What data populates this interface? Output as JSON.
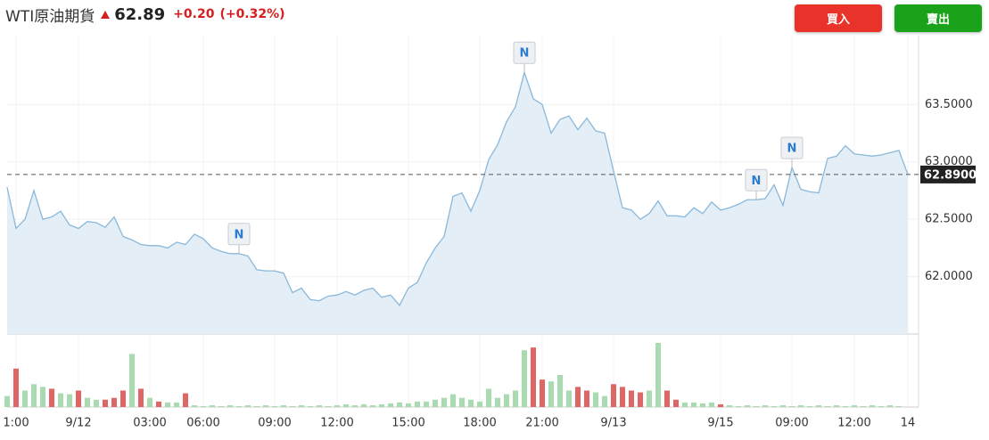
{
  "header": {
    "title": "WTI原油期貨",
    "price": "62.89",
    "change": "+0.20",
    "change_pct": "(+0.32%)",
    "buy": "買入",
    "sell": "賣出"
  },
  "chart_data": {
    "type": "line",
    "color": "#8ab8da",
    "fill": "#e4eef7",
    "categories": [
      null,
      "1:00",
      null,
      null,
      null,
      null,
      null,
      null,
      "9/12",
      null,
      null,
      null,
      null,
      null,
      null,
      null,
      "03:00",
      null,
      null,
      null,
      null,
      null,
      "06:00",
      null,
      null,
      null,
      null,
      null,
      null,
      null,
      "09:00",
      null,
      null,
      null,
      null,
      null,
      null,
      "12:00",
      null,
      null,
      null,
      null,
      null,
      null,
      null,
      "15:00",
      null,
      null,
      null,
      null,
      null,
      null,
      null,
      "18:00",
      null,
      null,
      null,
      null,
      null,
      null,
      "21:00",
      null,
      null,
      null,
      null,
      null,
      null,
      null,
      "9/13",
      null,
      null,
      null,
      null,
      null,
      null,
      null,
      null,
      null,
      null,
      null,
      "9/15",
      null,
      null,
      null,
      null,
      null,
      null,
      null,
      "09:00",
      null,
      null,
      null,
      null,
      null,
      null,
      "12:00",
      null,
      null,
      null,
      null,
      null,
      "14",
      null
    ],
    "values": [
      62.78,
      62.42,
      62.5,
      62.75,
      62.5,
      62.52,
      62.57,
      62.45,
      62.42,
      62.48,
      62.47,
      62.43,
      62.52,
      62.35,
      62.32,
      62.28,
      62.27,
      62.27,
      62.25,
      62.3,
      62.28,
      62.37,
      62.33,
      62.25,
      62.22,
      62.2,
      62.2,
      62.18,
      62.06,
      62.05,
      62.05,
      62.03,
      61.86,
      61.9,
      61.8,
      61.79,
      61.83,
      61.84,
      61.87,
      61.84,
      61.88,
      61.9,
      61.82,
      61.84,
      61.75,
      61.9,
      61.95,
      62.12,
      62.25,
      62.35,
      62.7,
      62.73,
      62.57,
      62.75,
      63.02,
      63.15,
      63.35,
      63.48,
      63.78,
      63.55,
      63.5,
      63.25,
      63.37,
      63.4,
      63.28,
      63.38,
      63.27,
      63.25,
      62.92,
      62.6,
      62.58,
      62.5,
      62.55,
      62.66,
      62.53,
      62.53,
      62.52,
      62.6,
      62.55,
      62.65,
      62.58,
      62.6,
      62.63,
      62.67,
      62.67,
      62.68,
      62.8,
      62.62,
      62.95,
      62.76,
      62.74,
      62.73,
      63.03,
      63.05,
      63.14,
      63.07,
      63.06,
      63.05,
      63.06,
      63.08,
      63.1,
      62.89,
      null
    ],
    "ylim": [
      61.5,
      64.1
    ],
    "yticks": [
      {
        "value": 62,
        "label": "62.0000"
      },
      {
        "value": 62.5,
        "label": "62.5000"
      },
      {
        "value": 63,
        "label": "63.0000"
      },
      {
        "value": 63.5,
        "label": "63.5000"
      }
    ],
    "last_price": {
      "value": 62.89,
      "label": "62.8900"
    },
    "grid": true,
    "annotations": [
      {
        "text": "N",
        "point": 26
      },
      {
        "text": "N",
        "point": 58
      },
      {
        "text": "N",
        "point": 84
      },
      {
        "text": "N",
        "point": 88
      }
    ],
    "volume": {
      "values": [
        12,
        42,
        18,
        25,
        22,
        20,
        15,
        14,
        18,
        10,
        8,
        8,
        10,
        18,
        58,
        20,
        10,
        6,
        5,
        5,
        15,
        2,
        1,
        2,
        1,
        2,
        1,
        2,
        1,
        2,
        1,
        2,
        1,
        2,
        1,
        2,
        1,
        2,
        3,
        2,
        3,
        2,
        3,
        4,
        5,
        4,
        6,
        6,
        8,
        10,
        14,
        10,
        8,
        6,
        20,
        10,
        14,
        18,
        62,
        65,
        30,
        28,
        35,
        18,
        22,
        18,
        16,
        12,
        25,
        22,
        18,
        16,
        18,
        70,
        18,
        8,
        5,
        5,
        4,
        5,
        3,
        2,
        1,
        2,
        1,
        2,
        1,
        2,
        1,
        2,
        1,
        2,
        1,
        2,
        1,
        2,
        1,
        2,
        1,
        2,
        1,
        null,
        null
      ],
      "colors": [
        "#a8dbb0",
        "#e06666",
        "#a8dbb0",
        "#a8dbb0",
        "#a8dbb0",
        "#e06666",
        "#a8dbb0",
        "#a8dbb0",
        "#e06666",
        "#a8dbb0",
        "#a8dbb0",
        "#e06666",
        "#e06666",
        "#e06666",
        "#a8dbb0",
        "#e06666",
        "#a8dbb0",
        "#e06666",
        "#a8dbb0",
        "#a8dbb0",
        "#e06666",
        "#a8dbb0",
        "#a8dbb0",
        "#a8dbb0",
        "#a8dbb0",
        "#a8dbb0",
        "#a8dbb0",
        "#a8dbb0",
        "#a8dbb0",
        "#a8dbb0",
        "#a8dbb0",
        "#a8dbb0",
        "#a8dbb0",
        "#a8dbb0",
        "#a8dbb0",
        "#a8dbb0",
        "#a8dbb0",
        "#a8dbb0",
        "#a8dbb0",
        "#a8dbb0",
        "#a8dbb0",
        "#a8dbb0",
        "#a8dbb0",
        "#a8dbb0",
        "#a8dbb0",
        "#a8dbb0",
        "#a8dbb0",
        "#a8dbb0",
        "#a8dbb0",
        "#a8dbb0",
        "#a8dbb0",
        "#a8dbb0",
        "#a8dbb0",
        "#a8dbb0",
        "#a8dbb0",
        "#a8dbb0",
        "#a8dbb0",
        "#a8dbb0",
        "#a8dbb0",
        "#e06666",
        "#e06666",
        "#a8dbb0",
        "#a8dbb0",
        "#a8dbb0",
        "#e06666",
        "#e06666",
        "#a8dbb0",
        "#a8dbb0",
        "#e06666",
        "#e06666",
        "#e06666",
        "#e06666",
        "#a8dbb0",
        "#a8dbb0",
        "#e06666",
        "#e06666",
        "#a8dbb0",
        "#a8dbb0",
        "#a8dbb0",
        "#a8dbb0",
        "#e06666",
        "#a8dbb0",
        "#a8dbb0",
        "#a8dbb0",
        "#a8dbb0",
        "#a8dbb0",
        "#a8dbb0",
        "#a8dbb0",
        "#a8dbb0",
        "#a8dbb0",
        "#a8dbb0",
        "#a8dbb0",
        "#a8dbb0",
        "#a8dbb0",
        "#a8dbb0",
        "#a8dbb0",
        "#a8dbb0",
        "#a8dbb0",
        "#a8dbb0",
        "#a8dbb0",
        "#a8dbb0",
        null,
        null
      ]
    }
  }
}
